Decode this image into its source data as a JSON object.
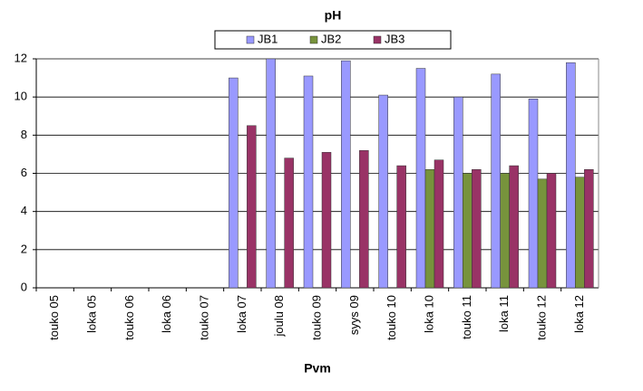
{
  "chart_data": {
    "type": "bar",
    "title": "pH",
    "x_label": "Pvm",
    "categories": [
      "touko 05",
      "loka 05",
      "touko 06",
      "loka 06",
      "touko 07",
      "loka 07",
      "joulu 08",
      "touko 09",
      "syys 09",
      "touko 10",
      "loka 10",
      "touko 11",
      "loka 11",
      "touko 12",
      "loka 12"
    ],
    "series": [
      {
        "name": "JB1",
        "color": "#9999ff",
        "values": [
          null,
          null,
          null,
          null,
          null,
          11.0,
          12.0,
          11.1,
          11.9,
          10.1,
          11.5,
          10.0,
          11.2,
          9.9,
          11.8
        ]
      },
      {
        "name": "JB2",
        "color": "#77933c",
        "values": [
          null,
          null,
          null,
          null,
          null,
          null,
          null,
          null,
          null,
          null,
          6.2,
          6.0,
          6.0,
          5.7,
          5.8
        ]
      },
      {
        "name": "JB3",
        "color": "#993366",
        "values": [
          null,
          null,
          null,
          null,
          null,
          8.5,
          6.8,
          7.1,
          7.2,
          6.4,
          6.7,
          6.2,
          6.4,
          6.0,
          6.2
        ]
      }
    ],
    "ylim": [
      0,
      12
    ],
    "yticks": [
      0,
      2,
      4,
      6,
      8,
      10,
      12
    ],
    "grid": true,
    "legend": "top"
  }
}
